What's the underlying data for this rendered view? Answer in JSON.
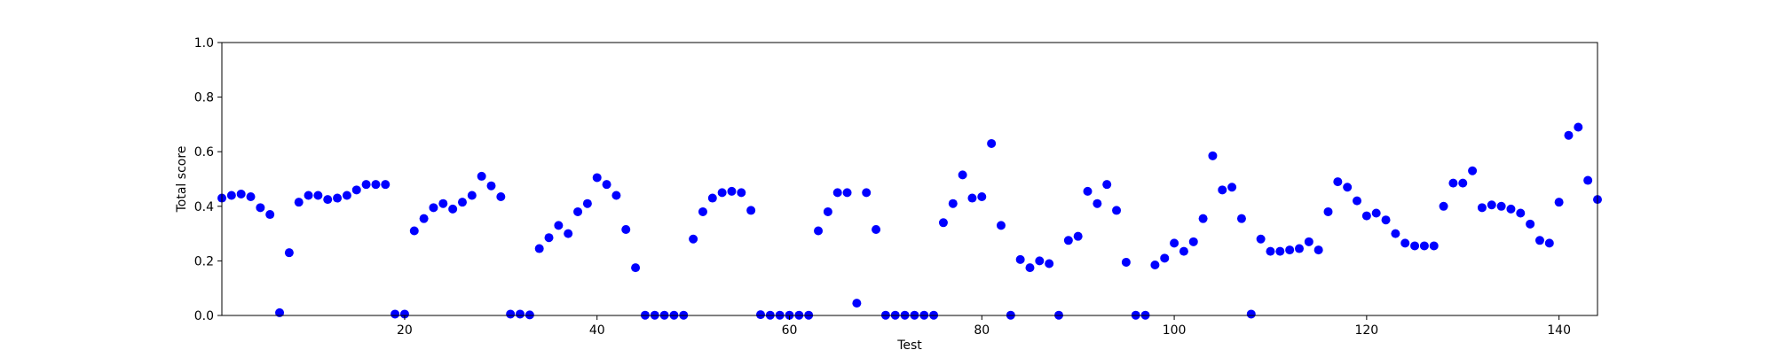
{
  "chart_data": {
    "type": "scatter",
    "title": "",
    "xlabel": "Test",
    "ylabel": "Total score",
    "xlim": [
      1,
      144
    ],
    "ylim": [
      0.0,
      1.0
    ],
    "xticks": [
      20,
      40,
      60,
      80,
      100,
      120,
      140
    ],
    "yticks": [
      0.0,
      0.2,
      0.4,
      0.6,
      0.8,
      1.0
    ],
    "ytick_labels": [
      "0.0",
      "0.2",
      "0.4",
      "0.6",
      "0.8",
      "1.0"
    ],
    "grid": false,
    "point_color": "#0000ff",
    "x": [
      1,
      2,
      3,
      4,
      5,
      6,
      7,
      8,
      9,
      10,
      11,
      12,
      13,
      14,
      15,
      16,
      17,
      18,
      19,
      20,
      21,
      22,
      23,
      24,
      25,
      26,
      27,
      28,
      29,
      30,
      31,
      32,
      33,
      34,
      35,
      36,
      37,
      38,
      39,
      40,
      41,
      42,
      43,
      44,
      45,
      46,
      47,
      48,
      49,
      50,
      51,
      52,
      53,
      54,
      55,
      56,
      57,
      58,
      59,
      60,
      61,
      62,
      63,
      64,
      65,
      66,
      67,
      68,
      69,
      70,
      71,
      72,
      73,
      74,
      75,
      76,
      77,
      78,
      79,
      80,
      81,
      82,
      83,
      84,
      85,
      86,
      87,
      88,
      89,
      90,
      91,
      92,
      93,
      94,
      95,
      96,
      97,
      98,
      99,
      100,
      101,
      102,
      103,
      104,
      105,
      106,
      107,
      108,
      109,
      110,
      111,
      112,
      113,
      114,
      115,
      116,
      117,
      118,
      119,
      120,
      121,
      122,
      123,
      124,
      125,
      126,
      127,
      128,
      129,
      130,
      131,
      132,
      133,
      134,
      135,
      136,
      137,
      138,
      139,
      140,
      141,
      142,
      143,
      144
    ],
    "y": [
      0.43,
      0.44,
      0.445,
      0.435,
      0.395,
      0.37,
      0.01,
      0.23,
      0.415,
      0.44,
      0.44,
      0.425,
      0.43,
      0.44,
      0.46,
      0.48,
      0.48,
      0.48,
      0.005,
      0.005,
      0.31,
      0.355,
      0.395,
      0.41,
      0.39,
      0.415,
      0.44,
      0.51,
      0.475,
      0.435,
      0.005,
      0.005,
      0.002,
      0.245,
      0.285,
      0.33,
      0.3,
      0.38,
      0.41,
      0.505,
      0.48,
      0.44,
      0.315,
      0.175,
      0.001,
      0.001,
      0.001,
      0.001,
      0.001,
      0.28,
      0.38,
      0.43,
      0.45,
      0.455,
      0.45,
      0.385,
      0.003,
      0.001,
      0.001,
      0.001,
      0.001,
      0.001,
      0.31,
      0.38,
      0.45,
      0.45,
      0.045,
      0.45,
      0.315,
      0.001,
      0.001,
      0.001,
      0.001,
      0.001,
      0.001,
      0.34,
      0.41,
      0.515,
      0.43,
      0.435,
      0.63,
      0.33,
      0.001,
      0.205,
      0.175,
      0.2,
      0.19,
      0.001,
      0.275,
      0.29,
      0.455,
      0.41,
      0.48,
      0.385,
      0.195,
      0.001,
      0.001,
      0.185,
      0.21,
      0.265,
      0.235,
      0.27,
      0.355,
      0.585,
      0.46,
      0.47,
      0.355,
      0.005,
      0.28,
      0.235,
      0.235,
      0.24,
      0.245,
      0.27,
      0.24,
      0.38,
      0.49,
      0.47,
      0.42,
      0.365,
      0.375,
      0.35,
      0.3,
      0.265,
      0.255,
      0.255,
      0.255,
      0.4,
      0.485,
      0.485,
      0.53,
      0.395,
      0.405,
      0.4,
      0.39,
      0.375,
      0.335,
      0.275,
      0.265,
      0.415,
      0.66,
      0.69,
      0.495,
      0.425
    ]
  }
}
